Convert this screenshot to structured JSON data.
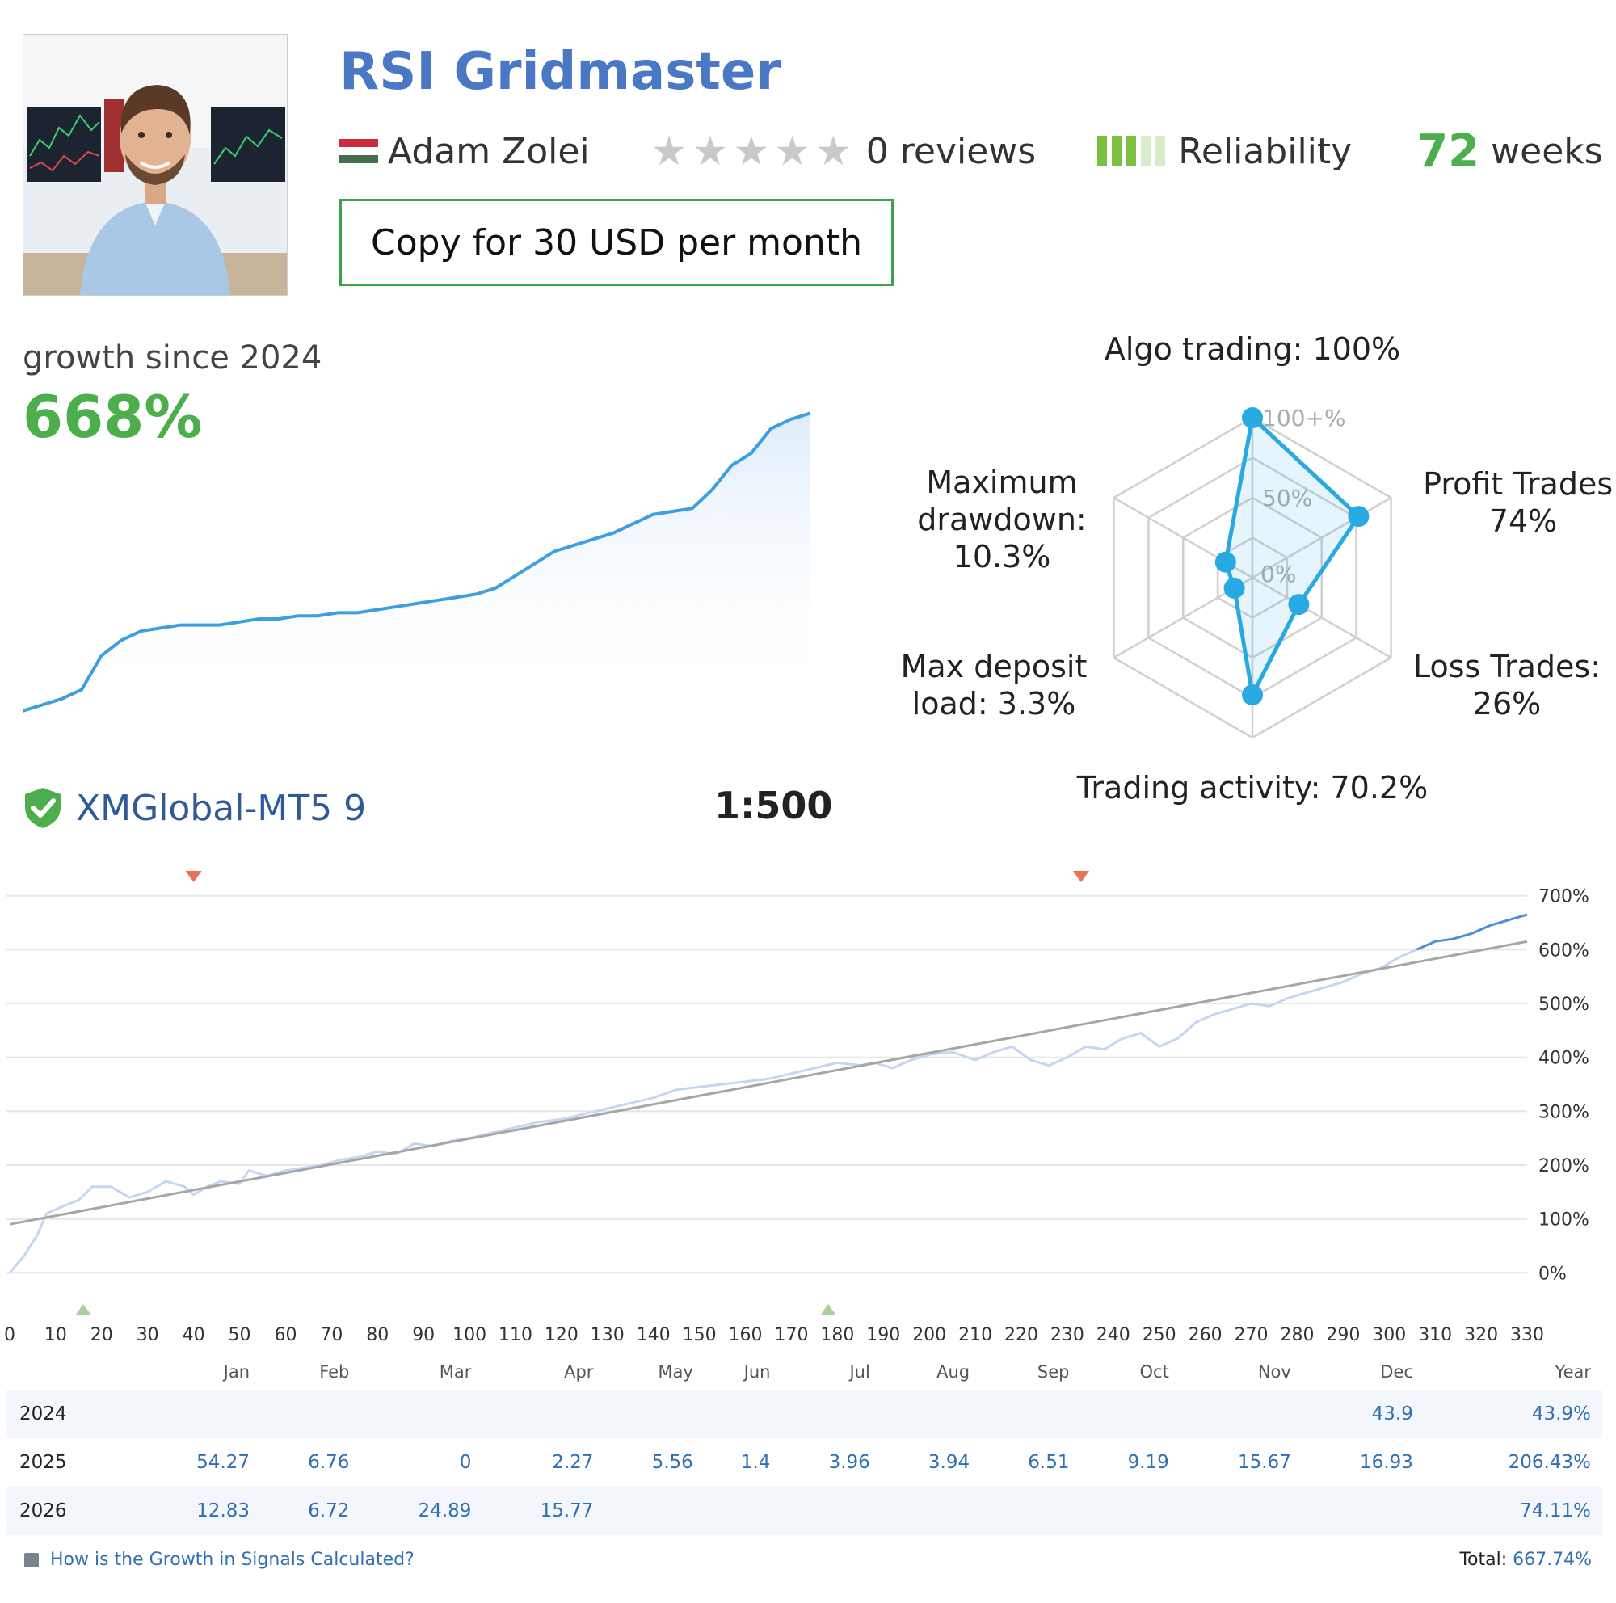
{
  "header": {
    "title": "RSI Gridmaster",
    "author": "Adam Zolei",
    "flag_colors": [
      "#cd2a3e",
      "#ffffff",
      "#436f4d"
    ],
    "rating_stars": 0,
    "reviews": "0 reviews",
    "reliability_label": "Reliability",
    "reliability_level": 3,
    "reliability_max": 5,
    "weeks_value": "72",
    "weeks_label": "weeks",
    "copy_button": "Copy for 30 USD per month"
  },
  "growth": {
    "label": "growth since 2024",
    "value": "668%"
  },
  "account": {
    "server": "XMGlobal-MT5 9",
    "leverage": "1:500"
  },
  "colors": {
    "title_blue": "#4a78c4",
    "green": "#4cae4c",
    "line_blue": "#3d9ee0",
    "radar_blue": "#29a9e1",
    "marker_red": "#e8735a",
    "marker_green": "#a6d39a"
  },
  "chart_data": [
    {
      "type": "area",
      "title": "",
      "description_note": "",
      "y_values": [
        0,
        2,
        4,
        7,
        18,
        23,
        26,
        27,
        28,
        28,
        28,
        29,
        30,
        30,
        31,
        31,
        32,
        32,
        33,
        34,
        35,
        36,
        37,
        38,
        40,
        44,
        48,
        52,
        54,
        56,
        58,
        61,
        64,
        65,
        66,
        72,
        80,
        84,
        92,
        95,
        97
      ],
      "ylim": [
        0,
        100
      ]
    },
    {
      "type": "radar",
      "axes": [
        {
          "label": "Algo trading: 100%",
          "value": 100
        },
        {
          "label": "Profit Trades: 74%",
          "value": 74
        },
        {
          "label": "Loss Trades: 26%",
          "value": 26
        },
        {
          "label": "Trading activity: 70.2%",
          "value": 70.2
        },
        {
          "label": "Max deposit load: 3.3%",
          "value": 3.3
        },
        {
          "label": "Maximum drawdown: 10.3%",
          "value": 10.3
        }
      ],
      "ring_labels": [
        "100+%",
        "50%",
        "0%"
      ]
    },
    {
      "type": "line",
      "xlabel": "",
      "ylabel": "",
      "x_ticks": [
        0,
        10,
        20,
        30,
        40,
        50,
        60,
        70,
        80,
        90,
        100,
        110,
        120,
        130,
        140,
        150,
        160,
        170,
        180,
        190,
        200,
        210,
        220,
        230,
        240,
        250,
        260,
        270,
        280,
        290,
        300,
        310,
        320,
        330
      ],
      "y_ticks": [
        "0%",
        "100%",
        "200%",
        "300%",
        "400%",
        "500%",
        "600%",
        "700%"
      ],
      "xlim": [
        0,
        330
      ],
      "ylim": [
        -70,
        710
      ],
      "series": [
        {
          "points": [
            [
              0,
              0
            ],
            [
              3,
              30
            ],
            [
              6,
              70
            ],
            [
              8,
              110
            ],
            [
              12,
              125
            ],
            [
              15,
              135
            ],
            [
              18,
              160
            ],
            [
              22,
              160
            ],
            [
              26,
              140
            ],
            [
              30,
              150
            ],
            [
              34,
              170
            ],
            [
              38,
              160
            ],
            [
              40,
              145
            ],
            [
              43,
              160
            ],
            [
              46,
              170
            ],
            [
              50,
              165
            ],
            [
              52,
              190
            ],
            [
              56,
              180
            ],
            [
              60,
              190
            ],
            [
              64,
              195
            ],
            [
              68,
              200
            ],
            [
              72,
              210
            ],
            [
              76,
              215
            ],
            [
              80,
              225
            ],
            [
              84,
              220
            ],
            [
              88,
              240
            ],
            [
              92,
              235
            ],
            [
              96,
              245
            ],
            [
              100,
              250
            ],
            [
              105,
              260
            ],
            [
              110,
              270
            ],
            [
              115,
              280
            ],
            [
              120,
              285
            ],
            [
              125,
              295
            ],
            [
              130,
              305
            ],
            [
              135,
              315
            ],
            [
              140,
              325
            ],
            [
              145,
              340
            ],
            [
              150,
              345
            ],
            [
              155,
              350
            ],
            [
              160,
              355
            ],
            [
              165,
              360
            ],
            [
              170,
              370
            ],
            [
              175,
              380
            ],
            [
              180,
              390
            ],
            [
              185,
              385
            ],
            [
              188,
              390
            ],
            [
              192,
              380
            ],
            [
              196,
              395
            ],
            [
              200,
              405
            ],
            [
              205,
              410
            ],
            [
              210,
              395
            ],
            [
              214,
              410
            ],
            [
              218,
              420
            ],
            [
              222,
              395
            ],
            [
              226,
              385
            ],
            [
              230,
              400
            ],
            [
              234,
              420
            ],
            [
              238,
              415
            ],
            [
              242,
              435
            ],
            [
              246,
              445
            ],
            [
              250,
              420
            ],
            [
              254,
              435
            ],
            [
              258,
              465
            ],
            [
              262,
              480
            ],
            [
              266,
              490
            ],
            [
              270,
              500
            ],
            [
              274,
              495
            ],
            [
              278,
              510
            ],
            [
              282,
              520
            ],
            [
              286,
              530
            ],
            [
              290,
              540
            ],
            [
              294,
              555
            ],
            [
              298,
              565
            ],
            [
              302,
              585
            ],
            [
              306,
              600
            ],
            [
              310,
              615
            ],
            [
              314,
              620
            ],
            [
              318,
              630
            ],
            [
              322,
              645
            ],
            [
              326,
              655
            ],
            [
              330,
              665
            ]
          ]
        },
        {
          "points": [
            [
              0,
              90
            ],
            [
              330,
              615
            ]
          ]
        }
      ],
      "markers_top_x": [
        40,
        233
      ],
      "markers_bottom_x": [
        16,
        178
      ]
    }
  ],
  "monthly_table": {
    "headers": [
      "",
      "Jan",
      "Feb",
      "Mar",
      "Apr",
      "May",
      "Jun",
      "Jul",
      "Aug",
      "Sep",
      "Oct",
      "Nov",
      "Dec",
      "Year"
    ],
    "rows": [
      [
        "2024",
        "",
        "",
        "",
        "",
        "",
        "",
        "",
        "",
        "",
        "",
        "",
        "43.9",
        "43.9%"
      ],
      [
        "2025",
        "54.27",
        "6.76",
        "0",
        "2.27",
        "5.56",
        "1.4",
        "3.96",
        "3.94",
        "6.51",
        "9.19",
        "15.67",
        "16.93",
        "206.43%"
      ],
      [
        "2026",
        "12.83",
        "6.72",
        "24.89",
        "15.77",
        "",
        "",
        "",
        "",
        "",
        "",
        "",
        "",
        "74.11%"
      ]
    ]
  },
  "footer": {
    "link": "How is the Growth in Signals Calculated?",
    "total_label": "Total:",
    "total_value": "667.74%"
  }
}
